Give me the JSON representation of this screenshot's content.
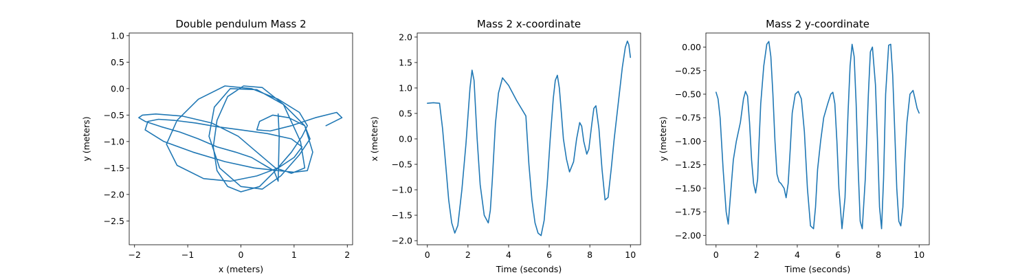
{
  "chart_data": [
    {
      "type": "line",
      "title": "Double pendulum Mass 2",
      "xlabel": "x (meters)",
      "ylabel": "y (meters)",
      "xlim": [
        -2.1,
        2.1
      ],
      "ylim": [
        -2.95,
        1.05
      ],
      "xticks": [
        -2,
        -1,
        0,
        1,
        2
      ],
      "xtick_labels": [
        "−2",
        "−1",
        "0",
        "1",
        "2"
      ],
      "yticks": [
        1.0,
        0.5,
        0.0,
        -0.5,
        -1.0,
        -1.5,
        -2.0,
        -2.5
      ],
      "ytick_labels": [
        "1.0",
        "0.5",
        "0.0",
        "−0.5",
        "−1.0",
        "−1.5",
        "−2.0",
        "−2.5"
      ],
      "grid": false,
      "series": [
        {
          "color": "#1f77b4",
          "x": [
            0.7,
            0.72,
            0.71,
            0.7,
            0.62,
            0.45,
            0.2,
            -0.1,
            -0.45,
            -0.8,
            -1.15,
            -1.5,
            -1.8,
            -1.92,
            -1.85,
            -1.6,
            -1.1,
            -0.55,
            -0.05,
            0.3,
            0.65,
            0.95,
            1.2,
            1.12,
            0.8,
            0.4,
            0.05,
            -0.25,
            -0.45,
            -0.52,
            -0.45,
            -0.25,
            0.0,
            0.35,
            0.65,
            0.95,
            1.15,
            1.25,
            1.1,
            0.7,
            0.2,
            -0.3,
            -0.8,
            -1.2,
            -1.4,
            -1.2,
            -0.7,
            -0.2,
            0.3,
            0.7,
            1.0,
            1.15,
            0.95,
            0.5,
            0.0,
            -0.45,
            -0.85,
            -1.25,
            -1.55,
            -1.75,
            -1.8,
            -1.45,
            -0.9,
            -0.3,
            0.25,
            0.7,
            1.0,
            1.25,
            1.35,
            1.2,
            0.8,
            0.3,
            -0.2,
            -0.5,
            -0.6,
            -0.4,
            0.0,
            0.4,
            0.75,
            1.1,
            1.3,
            1.2,
            0.9,
            0.6,
            0.35,
            0.3,
            0.55,
            0.95,
            1.4,
            1.8,
            1.9,
            1.6
          ],
          "y": [
            -0.48,
            -0.9,
            -1.35,
            -1.75,
            -1.55,
            -1.45,
            -1.3,
            -1.2,
            -1.1,
            -0.95,
            -0.82,
            -0.72,
            -0.62,
            -0.55,
            -0.5,
            -0.48,
            -0.52,
            -0.65,
            -0.9,
            -1.2,
            -1.5,
            -1.6,
            -1.5,
            -1.0,
            -0.3,
            0.02,
            0.05,
            -0.15,
            -0.6,
            -1.1,
            -1.55,
            -1.85,
            -1.95,
            -1.85,
            -1.55,
            -1.2,
            -0.9,
            -0.7,
            -0.45,
            -0.2,
            0.0,
            0.05,
            -0.2,
            -0.6,
            -1.05,
            -1.45,
            -1.7,
            -1.75,
            -1.65,
            -1.5,
            -1.3,
            -1.1,
            -0.95,
            -0.85,
            -0.78,
            -0.72,
            -0.65,
            -0.6,
            -0.58,
            -0.62,
            -0.78,
            -1.0,
            -1.2,
            -1.38,
            -1.5,
            -1.55,
            -1.58,
            -1.55,
            -1.2,
            -0.7,
            -0.3,
            -0.02,
            0.0,
            -0.35,
            -0.9,
            -1.5,
            -1.85,
            -1.9,
            -1.65,
            -1.25,
            -0.95,
            -0.7,
            -0.55,
            -0.5,
            -0.62,
            -0.78,
            -0.8,
            -0.7,
            -0.55,
            -0.45,
            -0.55,
            -0.7
          ]
        }
      ]
    },
    {
      "type": "line",
      "title": "Mass 2 x-coordinate",
      "xlabel": "Time (seconds)",
      "ylabel": "x (meters)",
      "xlim": [
        -0.5,
        10.5
      ],
      "ylim": [
        -2.08,
        2.08
      ],
      "xticks": [
        0,
        2,
        4,
        6,
        8,
        10
      ],
      "xtick_labels": [
        "0",
        "2",
        "4",
        "6",
        "8",
        "10"
      ],
      "yticks": [
        2.0,
        1.5,
        1.0,
        0.5,
        0.0,
        -0.5,
        -1.0,
        -1.5,
        -2.0
      ],
      "ytick_labels": [
        "2.0",
        "1.5",
        "1.0",
        "0.5",
        "0.0",
        "−0.5",
        "−1.0",
        "−1.5",
        "−2.0"
      ],
      "grid": false,
      "series": [
        {
          "color": "#1f77b4",
          "x": [
            0.0,
            0.3,
            0.6,
            0.75,
            0.9,
            1.05,
            1.2,
            1.35,
            1.5,
            1.7,
            1.9,
            2.1,
            2.2,
            2.3,
            2.45,
            2.6,
            2.8,
            3.0,
            3.1,
            3.2,
            3.35,
            3.5,
            3.7,
            4.0,
            4.4,
            4.85,
            5.0,
            5.15,
            5.3,
            5.45,
            5.6,
            5.75,
            5.9,
            6.05,
            6.2,
            6.3,
            6.4,
            6.5,
            6.6,
            6.7,
            6.85,
            7.0,
            7.2,
            7.35,
            7.5,
            7.6,
            7.7,
            7.85,
            7.95,
            8.1,
            8.2,
            8.3,
            8.45,
            8.6,
            8.75,
            8.9,
            9.05,
            9.2,
            9.4,
            9.6,
            9.75,
            9.85,
            9.92,
            10.0
          ],
          "y": [
            0.7,
            0.71,
            0.7,
            0.2,
            -0.5,
            -1.2,
            -1.65,
            -1.85,
            -1.7,
            -1.0,
            -0.1,
            1.0,
            1.35,
            1.15,
            0.0,
            -0.9,
            -1.5,
            -1.65,
            -1.4,
            -0.8,
            0.3,
            0.9,
            1.2,
            1.05,
            0.75,
            0.45,
            -0.5,
            -1.2,
            -1.65,
            -1.85,
            -1.9,
            -1.6,
            -0.9,
            0.0,
            0.8,
            1.15,
            1.25,
            1.0,
            0.5,
            0.0,
            -0.4,
            -0.65,
            -0.45,
            0.0,
            0.32,
            0.25,
            -0.05,
            -0.3,
            -0.2,
            0.3,
            0.6,
            0.65,
            0.2,
            -0.6,
            -1.2,
            -1.15,
            -0.6,
            0.0,
            0.7,
            1.4,
            1.8,
            1.92,
            1.85,
            1.6
          ]
        }
      ]
    },
    {
      "type": "line",
      "title": "Mass 2 y-coordinate",
      "xlabel": "Time (seconds)",
      "ylabel": "y (meters)",
      "xlim": [
        -0.5,
        10.5
      ],
      "ylim": [
        -2.1,
        0.15
      ],
      "xticks": [
        0,
        2,
        4,
        6,
        8,
        10
      ],
      "xtick_labels": [
        "0",
        "2",
        "4",
        "6",
        "8",
        "10"
      ],
      "yticks": [
        0.0,
        -0.25,
        -0.5,
        -0.75,
        -1.0,
        -1.25,
        -1.5,
        -1.75,
        -2.0
      ],
      "ytick_labels": [
        "0.00",
        "−0.25",
        "−0.50",
        "−0.75",
        "−1.00",
        "−1.25",
        "−1.50",
        "−1.75",
        "−2.00"
      ],
      "grid": false,
      "series": [
        {
          "color": "#1f77b4",
          "x": [
            0.0,
            0.1,
            0.2,
            0.35,
            0.5,
            0.6,
            0.7,
            0.85,
            1.0,
            1.2,
            1.35,
            1.45,
            1.55,
            1.65,
            1.75,
            1.85,
            1.95,
            2.05,
            2.1,
            2.2,
            2.35,
            2.5,
            2.6,
            2.7,
            2.8,
            2.9,
            3.0,
            3.1,
            3.2,
            3.35,
            3.45,
            3.55,
            3.65,
            3.75,
            3.9,
            4.05,
            4.2,
            4.35,
            4.5,
            4.65,
            4.8,
            4.9,
            5.0,
            5.15,
            5.3,
            5.5,
            5.65,
            5.75,
            5.85,
            5.95,
            6.05,
            6.2,
            6.35,
            6.5,
            6.6,
            6.7,
            6.8,
            6.9,
            7.0,
            7.1,
            7.2,
            7.35,
            7.5,
            7.6,
            7.7,
            7.85,
            7.95,
            8.05,
            8.15,
            8.25,
            8.35,
            8.5,
            8.6,
            8.7,
            8.8,
            8.9,
            9.0,
            9.1,
            9.2,
            9.3,
            9.4,
            9.55,
            9.7,
            9.8,
            9.9,
            10.0
          ],
          "y": [
            -0.48,
            -0.55,
            -0.75,
            -1.3,
            -1.75,
            -1.88,
            -1.6,
            -1.2,
            -1.0,
            -0.8,
            -0.55,
            -0.47,
            -0.52,
            -0.8,
            -1.2,
            -1.45,
            -1.55,
            -1.4,
            -1.1,
            -0.6,
            -0.2,
            0.03,
            0.06,
            -0.1,
            -0.5,
            -1.0,
            -1.35,
            -1.43,
            -1.45,
            -1.5,
            -1.6,
            -1.45,
            -1.1,
            -0.7,
            -0.5,
            -0.47,
            -0.55,
            -0.9,
            -1.5,
            -1.9,
            -1.93,
            -1.7,
            -1.3,
            -1.0,
            -0.75,
            -0.6,
            -0.5,
            -0.48,
            -0.6,
            -1.0,
            -1.5,
            -1.93,
            -1.6,
            -0.7,
            -0.2,
            0.03,
            -0.1,
            -0.6,
            -1.3,
            -1.85,
            -1.93,
            -1.4,
            -0.5,
            -0.05,
            0.0,
            -0.4,
            -1.0,
            -1.7,
            -1.93,
            -1.4,
            -0.5,
            0.02,
            0.03,
            -0.3,
            -0.9,
            -1.5,
            -1.85,
            -1.9,
            -1.7,
            -1.2,
            -0.8,
            -0.5,
            -0.46,
            -0.55,
            -0.65,
            -0.7
          ]
        }
      ]
    }
  ]
}
